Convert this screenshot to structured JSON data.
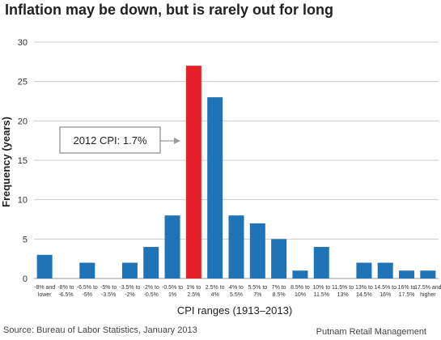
{
  "header": {
    "title": "Inflation may be down, but is rarely out for long"
  },
  "footer": {
    "source": "Source: Bureau of Labor Statistics, January 2013",
    "credit": "Putnam Retail Management"
  },
  "annotation": {
    "label": "2012 CPI: 1.7%"
  },
  "colors": {
    "bar": "#1f73b7",
    "highlight": "#e8202a",
    "grid": "#cccccc"
  },
  "chart_data": {
    "type": "bar",
    "title": "Inflation may be down, but is rarely out for long",
    "xlabel": "CPI ranges (1913–2013)",
    "ylabel": "Frequency (years)",
    "ylim": [
      0,
      30
    ],
    "yticks": [
      0,
      5,
      10,
      15,
      20,
      25,
      30
    ],
    "grid": true,
    "categories": [
      [
        "-8% and",
        "lower"
      ],
      [
        "-8% to",
        "-6.5%"
      ],
      [
        "-6.5% to",
        "-5%"
      ],
      [
        "-5% to",
        "-3.5%"
      ],
      [
        "-3.5% to",
        "-2%"
      ],
      [
        "-2% to",
        "-0.5%"
      ],
      [
        "-0.5% to",
        "1%"
      ],
      [
        "1% to",
        "2.5%"
      ],
      [
        "2.5% to",
        "4%"
      ],
      [
        "4% to",
        "5.5%"
      ],
      [
        "5.5% to",
        "7%"
      ],
      [
        "7% to",
        "8.5%"
      ],
      [
        "8.5% to",
        "10%"
      ],
      [
        "10% to",
        "11.5%"
      ],
      [
        "11.5% to",
        "13%"
      ],
      [
        "13% to",
        "14.5%"
      ],
      [
        "14.5% to",
        "16%"
      ],
      [
        "16% to",
        "17.5%"
      ],
      [
        "17.5% and",
        "higher"
      ]
    ],
    "values": [
      3,
      0,
      2,
      0,
      2,
      4,
      8,
      27,
      23,
      8,
      7,
      5,
      1,
      4,
      0,
      2,
      2,
      1,
      1
    ],
    "highlight_index": 7
  }
}
